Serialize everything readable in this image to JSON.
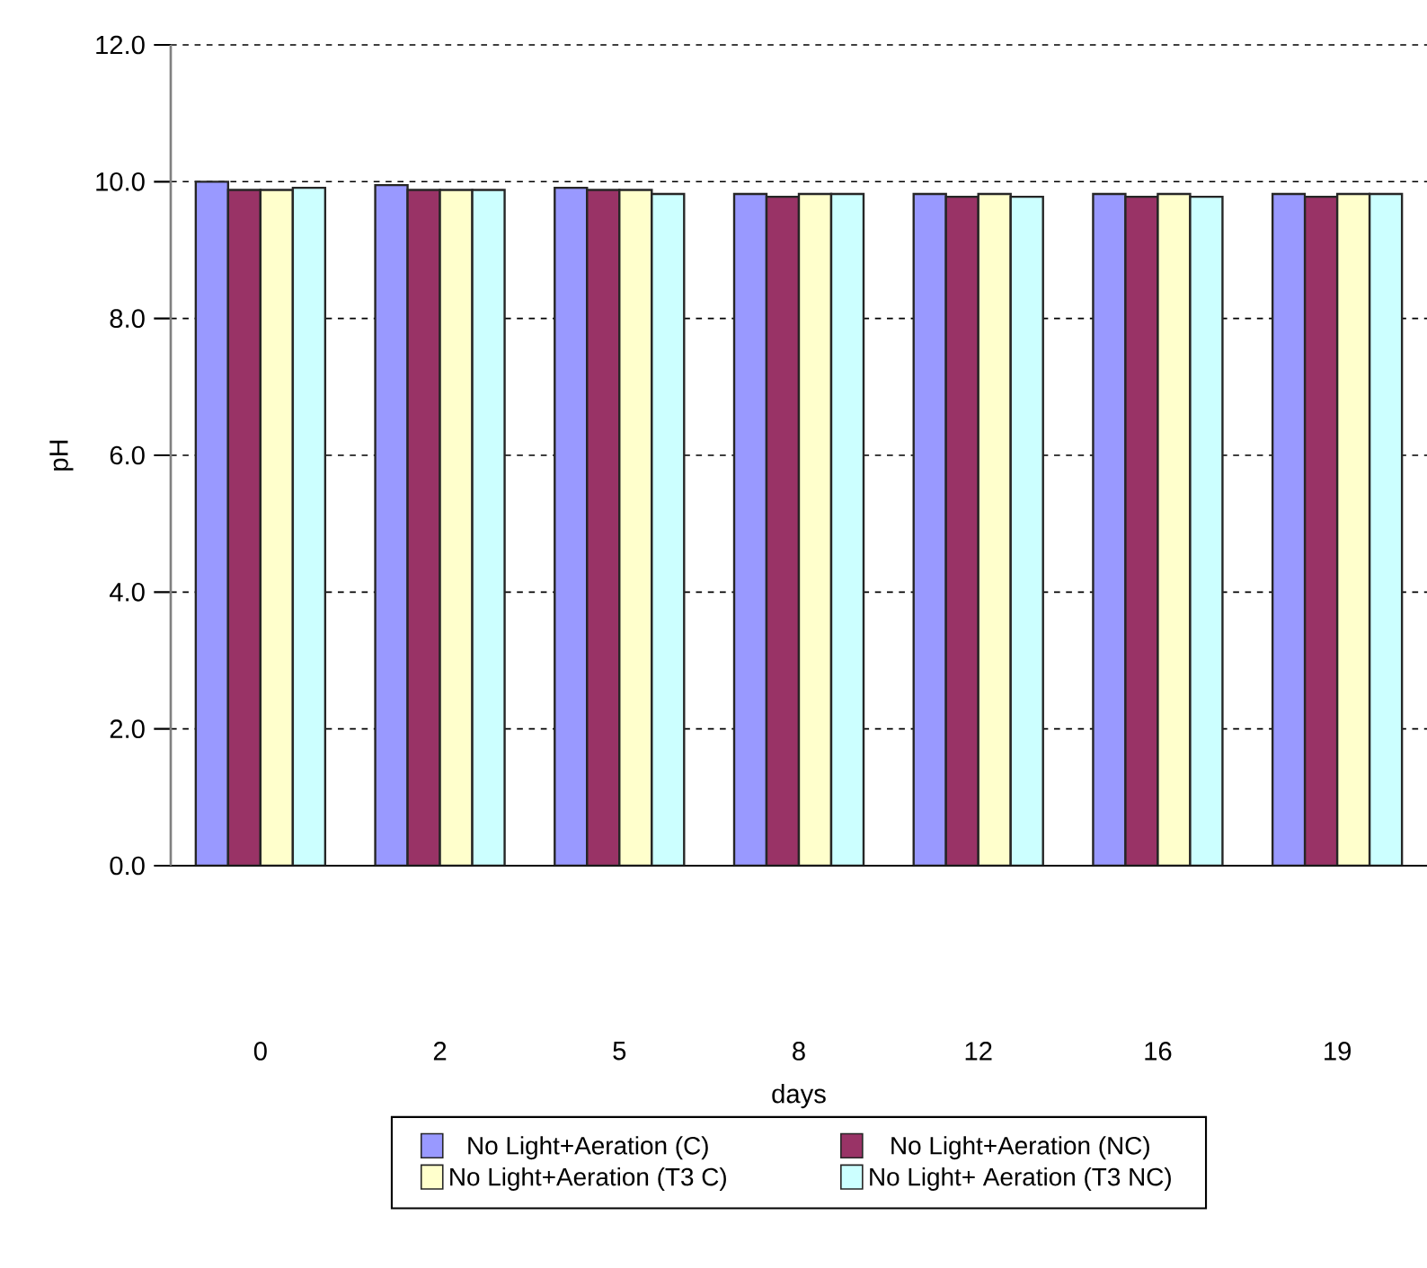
{
  "chart_data": {
    "type": "bar",
    "xlabel": "days",
    "ylabel": "pH",
    "categories": [
      "0",
      "2",
      "5",
      "8",
      "12",
      "16",
      "19"
    ],
    "series": [
      {
        "name": "No Light+Aeration (C)",
        "color": "#9999ff",
        "values": [
          10.0,
          9.95,
          9.91,
          9.82,
          9.82,
          9.82,
          9.82
        ]
      },
      {
        "name": "No Light+Aeration (NC)",
        "color": "#993366",
        "values": [
          9.88,
          9.88,
          9.88,
          9.78,
          9.78,
          9.78,
          9.78
        ]
      },
      {
        "name": "No Light+Aeration (T3 C)",
        "color": "#ffffcc",
        "values": [
          9.88,
          9.88,
          9.88,
          9.82,
          9.82,
          9.82,
          9.82
        ]
      },
      {
        "name": "No Light+ Aeration (T3 NC)",
        "color": "#ccffff",
        "values": [
          9.91,
          9.88,
          9.82,
          9.82,
          9.78,
          9.78,
          9.82
        ]
      }
    ],
    "ylim": [
      0,
      12
    ],
    "yticks": [
      {
        "value": 0,
        "label": "0.0"
      },
      {
        "value": 2,
        "label": "2.0"
      },
      {
        "value": 4,
        "label": "4.0"
      },
      {
        "value": 6,
        "label": "6.0"
      },
      {
        "value": 8,
        "label": "8.0"
      },
      {
        "value": 10,
        "label": "10.0"
      },
      {
        "value": 12,
        "label": "12.0"
      }
    ],
    "grid": "y",
    "legend": "bottom"
  }
}
